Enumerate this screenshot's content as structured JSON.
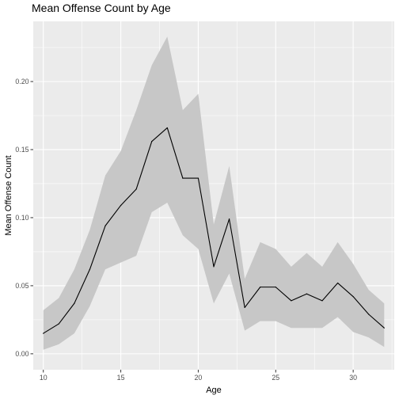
{
  "chart_data": {
    "type": "line",
    "title": "Mean Offense Count by Age",
    "xlabel": "Age",
    "ylabel": "Mean Offense Count",
    "xlim": [
      9.35,
      32.65
    ],
    "ylim": [
      -0.0117,
      0.2442
    ],
    "x_ticks": [
      10,
      15,
      20,
      25,
      30
    ],
    "x_tick_labels": [
      "10",
      "15",
      "20",
      "25",
      "30"
    ],
    "y_ticks": [
      0.0,
      0.05,
      0.1,
      0.15,
      0.2
    ],
    "y_tick_labels": [
      "0.00",
      "0.05",
      "0.10",
      "0.15",
      "0.20"
    ],
    "grid": true,
    "legend": "none",
    "series": [
      {
        "x": [
          10,
          11,
          12,
          13,
          14,
          15,
          16,
          17,
          18,
          19,
          20,
          21,
          22,
          23,
          24,
          25,
          26,
          27,
          28,
          29,
          30,
          31,
          32
        ],
        "values": [
          0.015,
          0.022,
          0.037,
          0.062,
          0.094,
          0.109,
          0.121,
          0.156,
          0.166,
          0.129,
          0.129,
          0.064,
          0.099,
          0.034,
          0.049,
          0.049,
          0.039,
          0.044,
          0.039,
          0.052,
          0.042,
          0.029,
          0.019
        ],
        "lower": [
          0.003,
          0.007,
          0.015,
          0.035,
          0.062,
          0.067,
          0.072,
          0.104,
          0.111,
          0.087,
          0.077,
          0.037,
          0.059,
          0.017,
          0.024,
          0.024,
          0.019,
          0.019,
          0.019,
          0.027,
          0.016,
          0.012,
          0.005
        ],
        "upper": [
          0.032,
          0.041,
          0.062,
          0.091,
          0.131,
          0.149,
          0.179,
          0.212,
          0.233,
          0.179,
          0.191,
          0.095,
          0.138,
          0.055,
          0.082,
          0.077,
          0.064,
          0.074,
          0.064,
          0.082,
          0.066,
          0.047,
          0.037
        ]
      }
    ],
    "colors": {
      "panel": "#ebebeb",
      "grid_major": "#ffffff",
      "ribbon": "#c7c7c7",
      "line": "#000000",
      "tick": "#333333"
    }
  }
}
